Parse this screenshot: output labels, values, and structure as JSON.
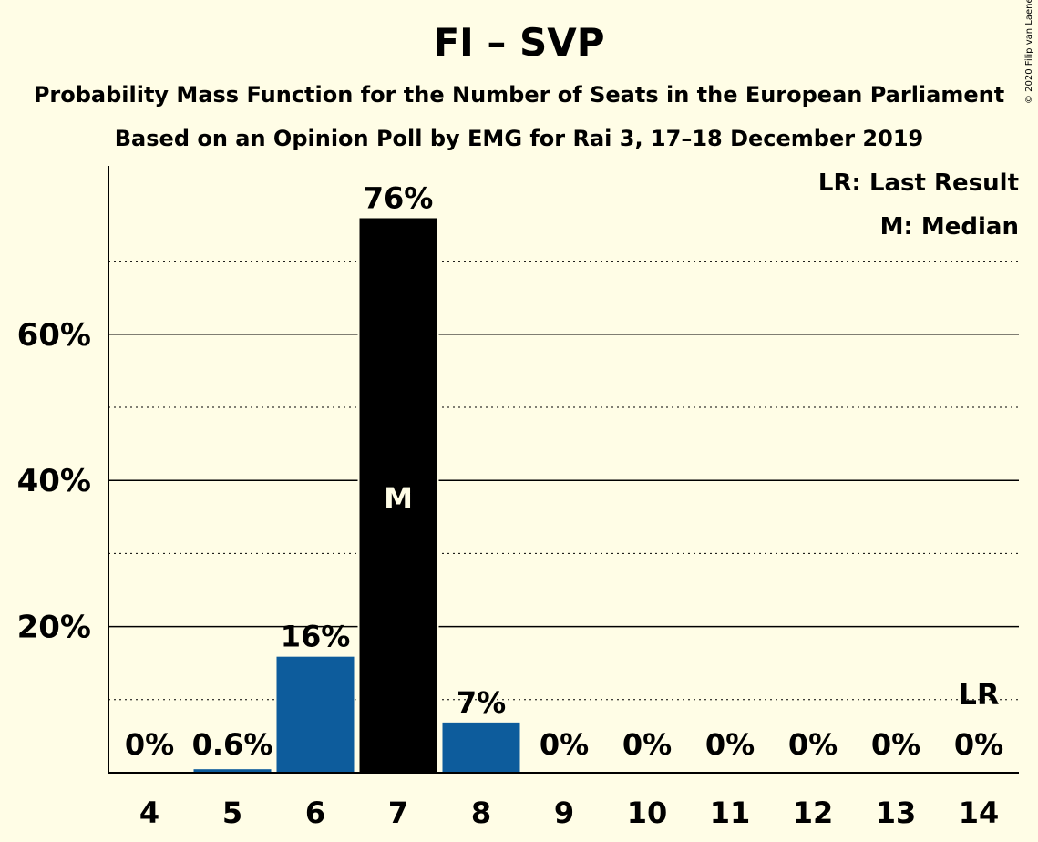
{
  "chart_data": {
    "type": "bar",
    "title": "FI – SVP",
    "subtitle": "Probability Mass Function for the Number of Seats in the European Parliament",
    "subtitle2": "Based on an Opinion Poll by EMG for Rai 3, 17–18 December 2019",
    "copyright": "© 2020 Filip van Laenen",
    "categories": [
      "4",
      "5",
      "6",
      "7",
      "8",
      "9",
      "10",
      "11",
      "12",
      "13",
      "14"
    ],
    "values": [
      0,
      0.6,
      16,
      76,
      7,
      0,
      0,
      0,
      0,
      0,
      0
    ],
    "value_labels": [
      "0%",
      "0.6%",
      "16%",
      "76%",
      "7%",
      "0%",
      "0%",
      "0%",
      "0%",
      "0%",
      "0%"
    ],
    "ylim": [
      0,
      82
    ],
    "yticks": [
      20,
      40,
      60
    ],
    "ytick_labels": [
      "20%",
      "40%",
      "60%"
    ],
    "minor_gridlines": [
      10,
      30,
      50,
      70
    ],
    "median_category": "7",
    "median_marker": "M",
    "last_result_category": "14",
    "last_result_marker": "LR",
    "legend": [
      "LR: Last Result",
      "M: Median"
    ],
    "legend_position": "top-right",
    "colors": {
      "background": "#fffde6",
      "bar": "#0d5c9c",
      "median_bar": "#000000",
      "axis": "#000000"
    }
  }
}
